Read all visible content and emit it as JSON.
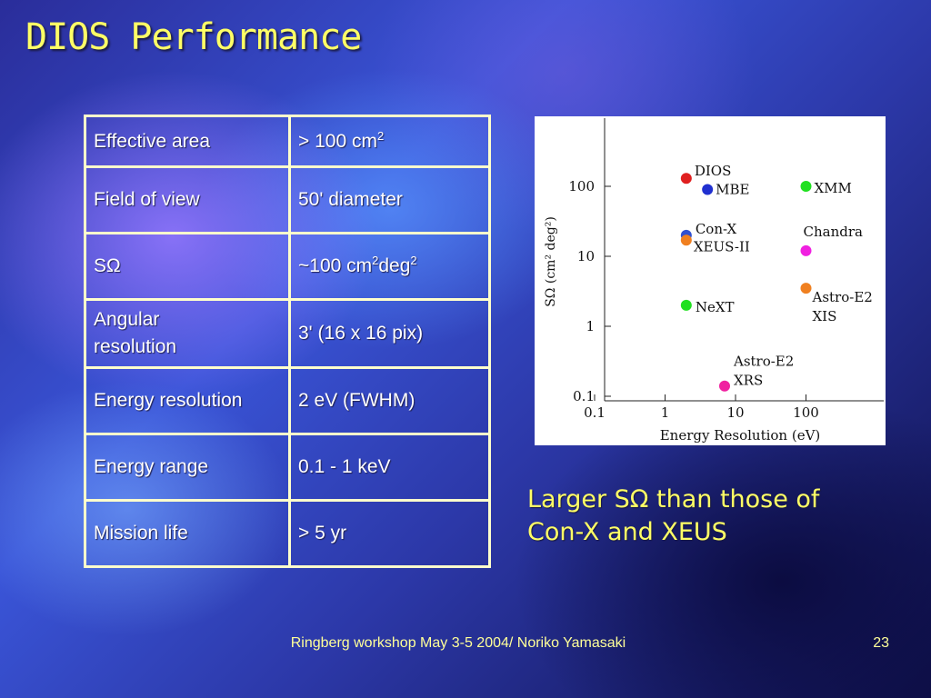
{
  "slide": {
    "title": "DIOS Performance",
    "caption_line1": "Larger SΩ than those of",
    "caption_line2": "Con-X and XEUS",
    "footer": "Ringberg workshop May 3-5 2004/ Noriko Yamasaki",
    "page_number": "23"
  },
  "table": {
    "rows": [
      {
        "label": "Effective area",
        "value": "> 100 cm",
        "value_sup": "2"
      },
      {
        "label": "Field of view",
        "value": "50' diameter"
      },
      {
        "label": "SΩ",
        "value": "~100 cm",
        "value_sup": "2",
        "value_mid": "deg",
        "value_sup2": "2"
      },
      {
        "label_line1": "Angular",
        "label_line2": "resolution",
        "value": "3' (16 x 16 pix)"
      },
      {
        "label": "Energy resolution",
        "value": "2 eV (FWHM)"
      },
      {
        "label": "Energy range",
        "value": "0.1 - 1 keV"
      },
      {
        "label": "Mission life",
        "value": "> 5 yr"
      }
    ]
  },
  "chart_data": {
    "type": "scatter",
    "xlabel": "Energy Resolution (eV)",
    "ylabel": "SΩ (cm² deg²)",
    "x_scale": "log",
    "y_scale": "log",
    "xlim": [
      0.1,
      1000
    ],
    "ylim": [
      0.1,
      1000
    ],
    "xticks": [
      "0.1",
      "1",
      "10",
      "100"
    ],
    "yticks": [
      "0.1",
      "1",
      "10",
      "100"
    ],
    "grid": false,
    "points": [
      {
        "label": "DIOS",
        "x": 2,
        "y": 130,
        "color": "#e02020"
      },
      {
        "label": "MBE",
        "x": 4,
        "y": 90,
        "color": "#2030d0"
      },
      {
        "label": "XMM",
        "x": 100,
        "y": 100,
        "color": "#20e020"
      },
      {
        "label": "Con-X",
        "x": 2,
        "y": 20,
        "color": "#3050d0"
      },
      {
        "label": "XEUS-II",
        "x": 2,
        "y": 17,
        "color": "#f08020"
      },
      {
        "label": "Chandra",
        "x": 100,
        "y": 12,
        "color": "#f020e0"
      },
      {
        "label_line1": "Astro-E2",
        "label_line2": "XIS",
        "x": 100,
        "y": 3.5,
        "color": "#f08020"
      },
      {
        "label": "NeXT",
        "x": 2,
        "y": 2,
        "color": "#20e020"
      },
      {
        "label_line1": "Astro-E2",
        "label_line2": "XRS",
        "x": 7,
        "y": 0.14,
        "color": "#f020a0"
      }
    ]
  }
}
